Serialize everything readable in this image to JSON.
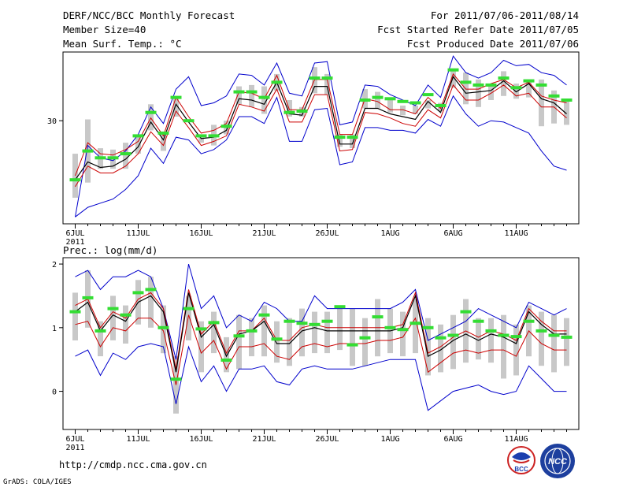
{
  "header": {
    "line1": "DERF/NCC/BCC Monthly Forecast",
    "line2": "Member Size=40",
    "line3": "Mean Surf. Temp.: °C",
    "right1": "For 2011/07/06-2011/08/14",
    "right2": "Fcst Started Refer Date 2011/07/05",
    "right3": "Fcst Produced Date 2011/07/06"
  },
  "footer": {
    "url": "http://cmdp.ncc.cma.gov.cn",
    "grads": "GrADS: COLA/IGES",
    "logo_bcc": "BCC",
    "logo_ncc": "NCC"
  },
  "colors": {
    "envelope": "#0000cc",
    "spread": "#cc0000",
    "mean": "#000000",
    "box": "#c8c8c8",
    "median": "#33dd33"
  },
  "chart_data": [
    {
      "type": "line",
      "title": "Mean Surf. Temp.: °C",
      "ylabel": "°C",
      "ylim": [
        22.5,
        35.0
      ],
      "yticks": [
        30
      ],
      "day_range": [
        0,
        39
      ],
      "xtick_days": [
        0,
        5,
        10,
        15,
        20,
        25,
        30,
        35
      ],
      "xticks": [
        "6JUL",
        "11JUL",
        "16JUL",
        "21JUL",
        "26JUL",
        "1AUG",
        "6AUG",
        "11AUG"
      ],
      "xtick_year": "2011",
      "series": [
        {
          "name": "max",
          "color": "#0000cc",
          "values": [
            23.0,
            28.2,
            27.3,
            27.1,
            27.8,
            29.0,
            31.0,
            29.8,
            32.3,
            33.2,
            31.1,
            31.3,
            31.8,
            33.4,
            33.3,
            32.6,
            34.2,
            32.0,
            31.8,
            34.2,
            34.3,
            29.7,
            29.9,
            32.6,
            32.5,
            31.9,
            31.5,
            31.1,
            32.6,
            31.7,
            34.7,
            33.5,
            33.1,
            33.5,
            34.4,
            34.0,
            34.1,
            33.5,
            33.3,
            32.6
          ]
        },
        {
          "name": "spread-upper",
          "color": "#cc0000",
          "values": [
            26.0,
            28.4,
            27.6,
            27.5,
            27.9,
            28.5,
            30.2,
            28.9,
            31.7,
            30.3,
            29.1,
            29.3,
            29.8,
            32.1,
            32.0,
            31.6,
            33.3,
            30.8,
            30.8,
            33.0,
            33.0,
            29.0,
            29.0,
            31.6,
            31.4,
            30.8,
            30.8,
            30.5,
            31.7,
            30.9,
            33.4,
            32.3,
            32.3,
            32.7,
            33.0,
            32.4,
            32.8,
            31.8,
            31.5,
            31.3
          ]
        },
        {
          "name": "ensemble-mean",
          "color": "#000000",
          "values": [
            25.7,
            27.0,
            26.6,
            26.7,
            27.2,
            28.1,
            29.9,
            28.6,
            31.2,
            29.9,
            28.7,
            28.8,
            29.3,
            31.6,
            31.5,
            31.2,
            32.8,
            30.5,
            30.4,
            32.5,
            32.5,
            28.3,
            28.3,
            30.9,
            30.9,
            30.5,
            30.3,
            30.1,
            31.4,
            30.6,
            33.2,
            32.0,
            32.1,
            32.2,
            32.9,
            32.1,
            32.7,
            31.6,
            31.3,
            30.5
          ]
        },
        {
          "name": "spread-lower",
          "color": "#cc0000",
          "values": [
            25.2,
            26.7,
            26.2,
            26.2,
            26.7,
            27.6,
            29.2,
            28.2,
            30.7,
            29.5,
            28.2,
            28.5,
            28.9,
            31.2,
            31.0,
            30.7,
            32.3,
            29.9,
            29.9,
            31.9,
            31.9,
            27.8,
            27.9,
            30.6,
            30.5,
            30.2,
            29.8,
            29.6,
            30.8,
            30.2,
            32.6,
            31.5,
            31.5,
            32.0,
            32.6,
            31.8,
            32.0,
            31.0,
            31.0,
            30.2
          ]
        },
        {
          "name": "min",
          "color": "#0000cc",
          "values": [
            23.0,
            23.7,
            24.0,
            24.3,
            25.0,
            26.0,
            28.0,
            26.9,
            28.8,
            28.6,
            27.6,
            27.9,
            28.6,
            30.3,
            30.3,
            29.8,
            31.7,
            28.5,
            28.5,
            30.8,
            30.9,
            26.8,
            27.0,
            29.5,
            29.5,
            29.3,
            29.3,
            29.1,
            30.1,
            29.6,
            31.8,
            30.5,
            29.6,
            30.0,
            29.9,
            29.5,
            29.1,
            27.8,
            26.7,
            26.4
          ]
        },
        {
          "name": "median",
          "color": "#33dd33",
          "values": [
            25.7,
            27.8,
            27.3,
            27.3,
            27.6,
            28.9,
            30.6,
            29.1,
            31.7,
            30.0,
            28.9,
            28.9,
            29.6,
            32.1,
            32.1,
            31.7,
            32.8,
            30.6,
            30.7,
            33.1,
            33.1,
            28.8,
            28.8,
            31.5,
            31.7,
            31.6,
            31.4,
            31.3,
            31.9,
            31.1,
            33.7,
            32.8,
            32.6,
            32.6,
            33.1,
            32.4,
            32.9,
            32.6,
            31.8,
            31.5
          ]
        },
        {
          "name": "box-top",
          "color": "#c8c8c8",
          "values": [
            27.6,
            30.1,
            28.0,
            27.9,
            28.4,
            29.0,
            31.2,
            29.0,
            31.6,
            29.2,
            29.0,
            29.7,
            30.0,
            32.5,
            32.6,
            32.5,
            33.4,
            31.5,
            31.0,
            33.9,
            33.4,
            29.0,
            29.0,
            32.3,
            32.1,
            31.5,
            31.1,
            31.1,
            31.5,
            31.3,
            33.6,
            33.5,
            33.0,
            32.7,
            33.6,
            32.7,
            33.0,
            33.0,
            32.2,
            31.5
          ]
        },
        {
          "name": "box-bottom",
          "color": "#c8c8c8",
          "values": [
            24.4,
            25.5,
            26.5,
            26.5,
            26.5,
            27.6,
            29.3,
            27.8,
            30.3,
            29.2,
            28.4,
            28.2,
            29.0,
            31.2,
            31.0,
            30.5,
            32.2,
            30.3,
            30.3,
            32.0,
            31.9,
            28.1,
            28.0,
            30.9,
            30.9,
            30.6,
            30.4,
            30.5,
            30.9,
            30.7,
            32.4,
            31.2,
            31.0,
            31.5,
            31.8,
            31.6,
            31.7,
            29.6,
            29.8,
            29.7
          ]
        }
      ]
    },
    {
      "type": "line",
      "title": "Prec.: log(mm/d)",
      "ylabel": "log(mm/d)",
      "ylim": [
        -0.6,
        2.1
      ],
      "yticks": [
        0,
        1,
        2
      ],
      "day_range": [
        0,
        39
      ],
      "xtick_days": [
        0,
        5,
        10,
        15,
        20,
        25,
        30,
        35
      ],
      "xticks": [
        "6JUL",
        "11JUL",
        "16JUL",
        "21JUL",
        "26JUL",
        "1AUG",
        "6AUG",
        "11AUG"
      ],
      "xtick_year": "2011",
      "series": [
        {
          "name": "max",
          "color": "#0000cc",
          "values": [
            1.8,
            1.9,
            1.6,
            1.8,
            1.8,
            1.9,
            1.8,
            1.3,
            0.5,
            2.0,
            1.3,
            1.5,
            1.0,
            1.2,
            1.1,
            1.4,
            1.3,
            1.1,
            1.1,
            1.5,
            1.3,
            1.3,
            1.3,
            1.3,
            1.3,
            1.3,
            1.4,
            1.6,
            0.8,
            0.9,
            1.0,
            1.1,
            1.3,
            1.2,
            1.1,
            1.0,
            1.4,
            1.3,
            1.2,
            1.3
          ]
        },
        {
          "name": "spread-upper",
          "color": "#cc0000",
          "values": [
            1.35,
            1.45,
            1.0,
            1.25,
            1.15,
            1.45,
            1.55,
            1.3,
            0.35,
            1.6,
            0.9,
            1.1,
            0.6,
            0.95,
            0.95,
            1.15,
            0.8,
            0.8,
            1.0,
            1.05,
            1.0,
            1.0,
            1.0,
            1.0,
            1.0,
            1.0,
            1.05,
            1.55,
            0.6,
            0.7,
            0.85,
            0.95,
            0.85,
            0.95,
            0.9,
            0.8,
            1.3,
            1.1,
            0.95,
            0.95
          ]
        },
        {
          "name": "ensemble-mean",
          "color": "#000000",
          "values": [
            1.25,
            1.4,
            0.95,
            1.2,
            1.1,
            1.4,
            1.5,
            1.25,
            0.3,
            1.55,
            0.85,
            1.05,
            0.55,
            0.9,
            0.95,
            1.1,
            0.75,
            0.75,
            0.95,
            1.0,
            0.95,
            0.95,
            0.95,
            0.95,
            0.95,
            0.95,
            1.0,
            1.5,
            0.55,
            0.65,
            0.8,
            0.9,
            0.8,
            0.9,
            0.85,
            0.75,
            1.25,
            1.05,
            0.9,
            0.9
          ]
        },
        {
          "name": "spread-lower",
          "color": "#cc0000",
          "values": [
            1.05,
            1.1,
            0.7,
            1.0,
            0.95,
            1.15,
            1.15,
            0.95,
            0.1,
            1.2,
            0.6,
            0.8,
            0.35,
            0.7,
            0.7,
            0.75,
            0.55,
            0.5,
            0.7,
            0.75,
            0.7,
            0.75,
            0.75,
            0.75,
            0.8,
            0.8,
            0.85,
            1.15,
            0.3,
            0.45,
            0.6,
            0.65,
            0.6,
            0.65,
            0.65,
            0.55,
            0.95,
            0.75,
            0.65,
            0.65
          ]
        },
        {
          "name": "min",
          "color": "#0000cc",
          "values": [
            0.55,
            0.65,
            0.25,
            0.6,
            0.5,
            0.7,
            0.75,
            0.7,
            -0.2,
            0.7,
            0.15,
            0.4,
            0.0,
            0.35,
            0.35,
            0.4,
            0.15,
            0.1,
            0.35,
            0.4,
            0.35,
            0.35,
            0.35,
            0.4,
            0.45,
            0.5,
            0.5,
            0.5,
            -0.3,
            -0.15,
            0.0,
            0.05,
            0.1,
            0.0,
            -0.05,
            0.0,
            0.4,
            0.2,
            0.0,
            0.0
          ]
        },
        {
          "name": "median",
          "color": "#33dd33",
          "values": [
            1.25,
            1.47,
            0.95,
            1.3,
            1.2,
            1.55,
            1.6,
            1.0,
            0.19,
            1.3,
            0.98,
            1.08,
            0.49,
            0.87,
            0.95,
            1.2,
            0.82,
            1.1,
            1.07,
            1.05,
            1.1,
            1.33,
            0.73,
            0.84,
            1.17,
            1.0,
            0.97,
            1.07,
            1.0,
            0.84,
            0.88,
            1.25,
            1.1,
            0.95,
            0.88,
            0.86,
            1.1,
            0.95,
            0.88,
            0.85
          ]
        },
        {
          "name": "box-top",
          "color": "#c8c8c8",
          "values": [
            1.55,
            1.9,
            1.1,
            1.5,
            1.35,
            1.75,
            1.8,
            1.35,
            0.55,
            1.5,
            1.1,
            1.25,
            0.85,
            1.2,
            1.15,
            1.35,
            1.1,
            1.15,
            1.3,
            1.25,
            1.25,
            1.3,
            1.3,
            1.15,
            1.45,
            1.3,
            1.25,
            1.45,
            1.15,
            1.05,
            1.2,
            1.45,
            1.15,
            1.15,
            1.2,
            1.05,
            1.35,
            1.25,
            1.2,
            1.15
          ]
        },
        {
          "name": "box-bottom",
          "color": "#c8c8c8",
          "values": [
            0.8,
            1.0,
            0.55,
            0.8,
            0.75,
            1.05,
            1.0,
            0.6,
            -0.35,
            0.8,
            0.3,
            0.6,
            0.3,
            0.35,
            0.55,
            0.55,
            0.45,
            0.4,
            0.55,
            0.6,
            0.6,
            0.65,
            0.4,
            0.4,
            0.55,
            0.6,
            0.55,
            0.6,
            0.25,
            0.3,
            0.35,
            0.45,
            0.5,
            0.45,
            0.2,
            0.25,
            0.55,
            0.4,
            0.3,
            0.4
          ]
        }
      ]
    }
  ]
}
